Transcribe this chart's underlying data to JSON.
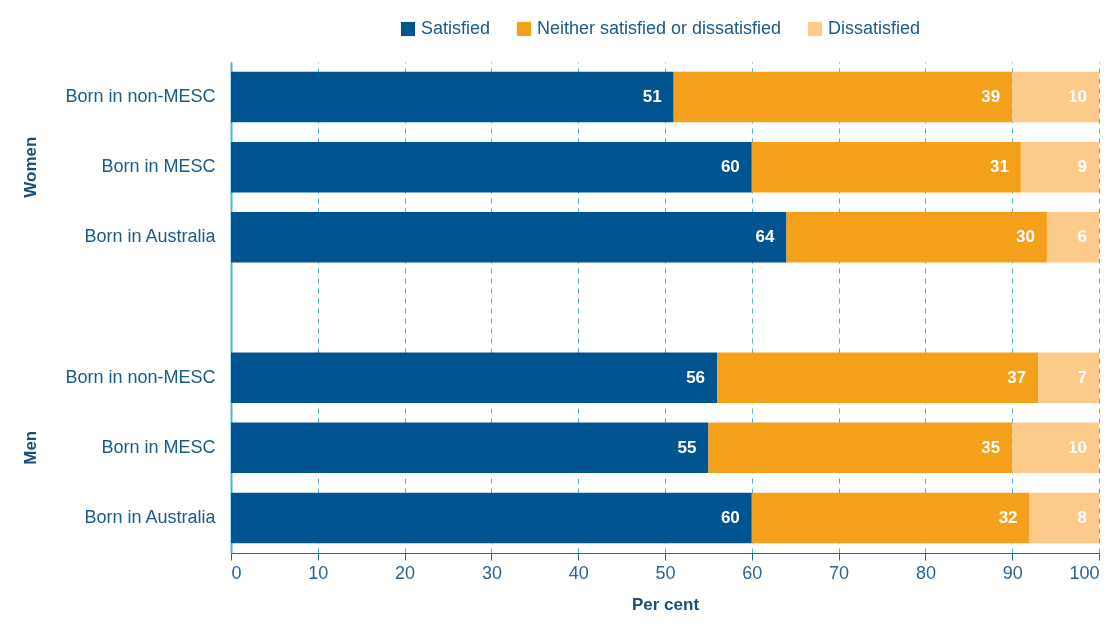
{
  "chart_data": {
    "type": "bar",
    "orientation": "horizontal",
    "stacked": true,
    "categories": [
      "Born in non-MESC",
      "Born in MESC",
      "Born in Australia",
      null,
      "Born in non-MESC",
      "Born in MESC",
      "Born in Australia"
    ],
    "series": [
      {
        "name": "Satisfied",
        "color": "#00548f",
        "values": [
          51,
          60,
          64,
          null,
          56,
          55,
          60
        ]
      },
      {
        "name": "Neither satisfied or dissatisfied",
        "color": "#f5a01a",
        "values": [
          39,
          31,
          30,
          null,
          37,
          35,
          32
        ]
      },
      {
        "name": "Dissatisfied",
        "color": "#fccb8a",
        "values": [
          10,
          9,
          6,
          null,
          7,
          10,
          8
        ]
      }
    ],
    "xlabel": "Per cent",
    "xlim": [
      0,
      100
    ],
    "xticks": [
      0,
      10,
      20,
      30,
      40,
      50,
      60,
      70,
      80,
      90,
      100
    ],
    "grid": "x",
    "legend": "top right",
    "data_labels": true,
    "annotations": [
      "Women",
      "Men"
    ]
  }
}
